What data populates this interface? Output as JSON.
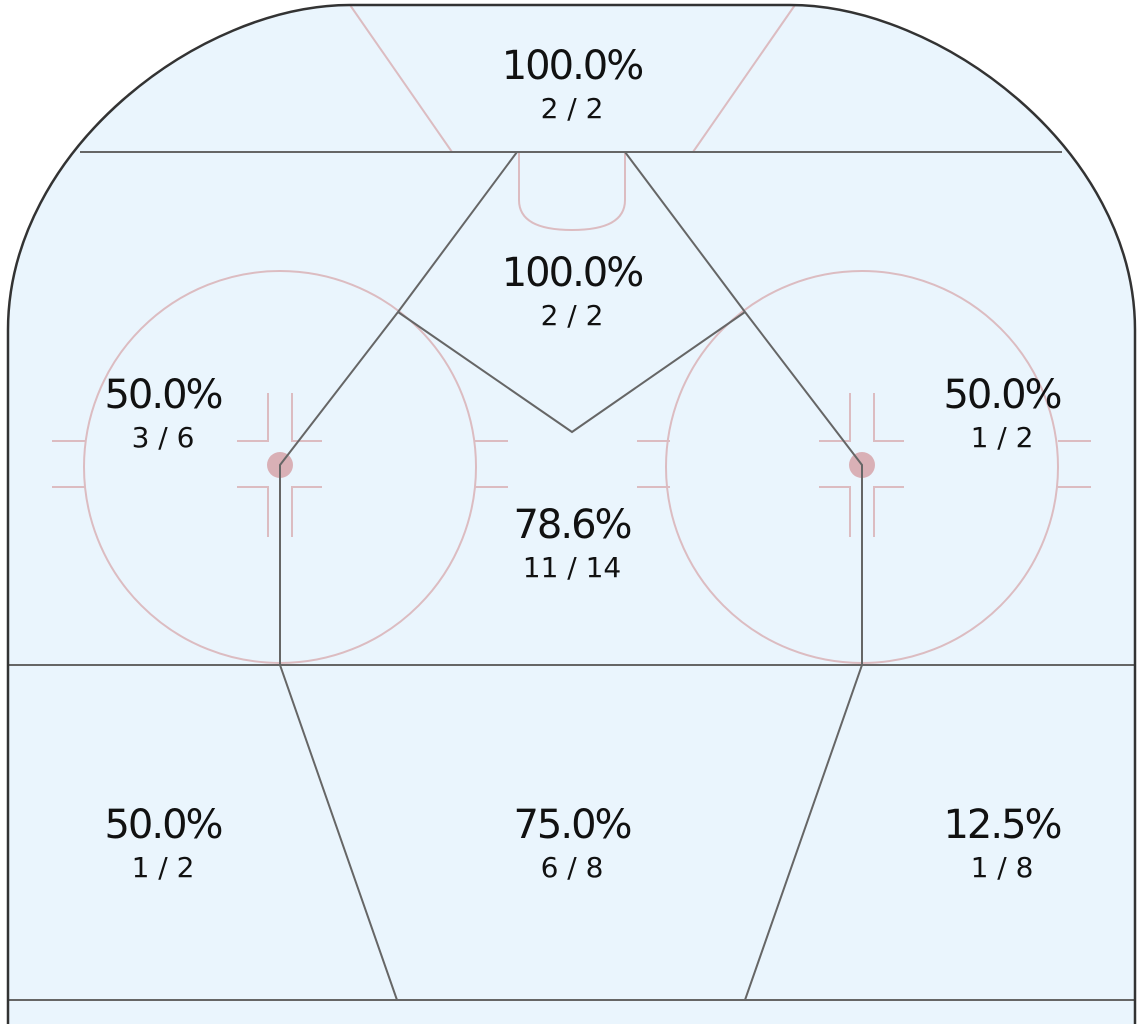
{
  "zones": [
    {
      "percent": "100.0%",
      "count": "2 / 2"
    },
    {
      "percent": "100.0%",
      "count": "2 / 2"
    },
    {
      "percent": "50.0%",
      "count": "3 / 6"
    },
    {
      "percent": "50.0%",
      "count": "1 / 2"
    },
    {
      "percent": "78.6%",
      "count": "11 / 14"
    },
    {
      "percent": "50.0%",
      "count": "1 / 2"
    },
    {
      "percent": "75.0%",
      "count": "6 / 8"
    },
    {
      "percent": "12.5%",
      "count": "1 / 8"
    }
  ]
}
